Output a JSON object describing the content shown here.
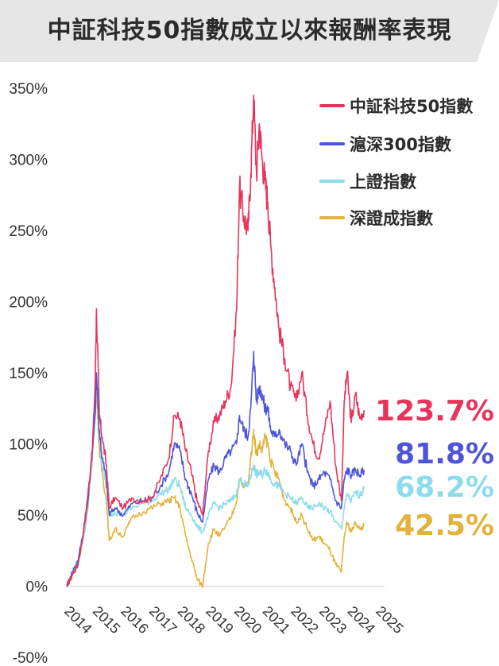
{
  "chart_data": {
    "type": "line",
    "title": "中証科技50指數成立以來報酬率表現",
    "xlabel": "",
    "ylabel": "",
    "ylim": [
      -50,
      350
    ],
    "y_ticks": [
      "350%",
      "300%",
      "250%",
      "200%",
      "150%",
      "100%",
      "50%",
      "0%",
      "-50%"
    ],
    "y_tick_values": [
      350,
      300,
      250,
      200,
      150,
      100,
      50,
      0,
      -50
    ],
    "x_ticks": [
      "2014",
      "2015",
      "2016",
      "2017",
      "2018",
      "2019",
      "2020",
      "2021",
      "2022",
      "2023",
      "2024",
      "2025"
    ],
    "x_tick_values": [
      2014.0,
      2015.0,
      2016.0,
      2017.0,
      2018.0,
      2019.0,
      2020.0,
      2021.0,
      2022.0,
      2023.0,
      2024.0,
      2025.0
    ],
    "grid": false,
    "legend_position": "top-right",
    "series": [
      {
        "name": "中証科技50指數",
        "color": "#e8345a",
        "final_label": "123.7%",
        "points": [
          [
            2014.0,
            0
          ],
          [
            2014.2,
            8
          ],
          [
            2014.4,
            15
          ],
          [
            2014.6,
            40
          ],
          [
            2014.75,
            65
          ],
          [
            2014.9,
            95
          ],
          [
            2015.0,
            140
          ],
          [
            2015.05,
            195
          ],
          [
            2015.15,
            120
          ],
          [
            2015.25,
            105
          ],
          [
            2015.4,
            85
          ],
          [
            2015.5,
            55
          ],
          [
            2015.7,
            62
          ],
          [
            2016.0,
            55
          ],
          [
            2016.3,
            62
          ],
          [
            2016.7,
            60
          ],
          [
            2017.0,
            62
          ],
          [
            2017.3,
            75
          ],
          [
            2017.6,
            90
          ],
          [
            2017.8,
            120
          ],
          [
            2018.0,
            118
          ],
          [
            2018.2,
            95
          ],
          [
            2018.4,
            80
          ],
          [
            2018.6,
            60
          ],
          [
            2018.8,
            50
          ],
          [
            2019.0,
            95
          ],
          [
            2019.2,
            115
          ],
          [
            2019.4,
            120
          ],
          [
            2019.6,
            130
          ],
          [
            2019.8,
            140
          ],
          [
            2020.0,
            195
          ],
          [
            2020.1,
            280
          ],
          [
            2020.25,
            260
          ],
          [
            2020.4,
            250
          ],
          [
            2020.5,
            290
          ],
          [
            2020.6,
            345
          ],
          [
            2020.7,
            290
          ],
          [
            2020.8,
            325
          ],
          [
            2020.9,
            300
          ],
          [
            2021.0,
            285
          ],
          [
            2021.1,
            270
          ],
          [
            2021.2,
            240
          ],
          [
            2021.35,
            210
          ],
          [
            2021.5,
            180
          ],
          [
            2021.7,
            160
          ],
          [
            2021.9,
            140
          ],
          [
            2022.1,
            130
          ],
          [
            2022.3,
            150
          ],
          [
            2022.5,
            120
          ],
          [
            2022.7,
            100
          ],
          [
            2022.9,
            90
          ],
          [
            2023.1,
            110
          ],
          [
            2023.3,
            130
          ],
          [
            2023.5,
            85
          ],
          [
            2023.7,
            60
          ],
          [
            2023.8,
            130
          ],
          [
            2023.9,
            150
          ],
          [
            2024.05,
            115
          ],
          [
            2024.2,
            135
          ],
          [
            2024.35,
            118
          ],
          [
            2024.5,
            123.7
          ]
        ]
      },
      {
        "name": "滬深300指數",
        "color": "#4e55d9",
        "final_label": "81.8%",
        "points": [
          [
            2014.0,
            0
          ],
          [
            2014.2,
            10
          ],
          [
            2014.4,
            18
          ],
          [
            2014.6,
            40
          ],
          [
            2014.75,
            60
          ],
          [
            2014.9,
            95
          ],
          [
            2015.0,
            120
          ],
          [
            2015.05,
            150
          ],
          [
            2015.15,
            110
          ],
          [
            2015.25,
            90
          ],
          [
            2015.4,
            75
          ],
          [
            2015.5,
            50
          ],
          [
            2015.7,
            55
          ],
          [
            2016.0,
            50
          ],
          [
            2016.3,
            58
          ],
          [
            2016.7,
            60
          ],
          [
            2017.0,
            62
          ],
          [
            2017.3,
            70
          ],
          [
            2017.6,
            80
          ],
          [
            2017.8,
            100
          ],
          [
            2018.0,
            95
          ],
          [
            2018.2,
            75
          ],
          [
            2018.4,
            65
          ],
          [
            2018.6,
            52
          ],
          [
            2018.8,
            45
          ],
          [
            2019.0,
            75
          ],
          [
            2019.2,
            85
          ],
          [
            2019.4,
            80
          ],
          [
            2019.6,
            90
          ],
          [
            2019.8,
            95
          ],
          [
            2020.0,
            100
          ],
          [
            2020.1,
            120
          ],
          [
            2020.25,
            110
          ],
          [
            2020.4,
            105
          ],
          [
            2020.5,
            125
          ],
          [
            2020.6,
            165
          ],
          [
            2020.7,
            130
          ],
          [
            2020.8,
            140
          ],
          [
            2020.9,
            135
          ],
          [
            2021.0,
            125
          ],
          [
            2021.1,
            125
          ],
          [
            2021.2,
            110
          ],
          [
            2021.35,
            105
          ],
          [
            2021.5,
            110
          ],
          [
            2021.7,
            100
          ],
          [
            2021.9,
            95
          ],
          [
            2022.1,
            85
          ],
          [
            2022.3,
            100
          ],
          [
            2022.5,
            80
          ],
          [
            2022.7,
            70
          ],
          [
            2022.9,
            75
          ],
          [
            2023.1,
            80
          ],
          [
            2023.3,
            75
          ],
          [
            2023.5,
            60
          ],
          [
            2023.7,
            55
          ],
          [
            2023.8,
            75
          ],
          [
            2023.9,
            82
          ],
          [
            2024.05,
            78
          ],
          [
            2024.2,
            82
          ],
          [
            2024.35,
            78
          ],
          [
            2024.5,
            81.8
          ]
        ]
      },
      {
        "name": "上證指數",
        "color": "#8ddcec",
        "final_label": "68.2%",
        "points": [
          [
            2014.0,
            0
          ],
          [
            2014.2,
            10
          ],
          [
            2014.4,
            18
          ],
          [
            2014.6,
            35
          ],
          [
            2014.75,
            58
          ],
          [
            2014.9,
            90
          ],
          [
            2015.0,
            115
          ],
          [
            2015.05,
            140
          ],
          [
            2015.15,
            105
          ],
          [
            2015.25,
            85
          ],
          [
            2015.4,
            70
          ],
          [
            2015.5,
            50
          ],
          [
            2015.7,
            52
          ],
          [
            2016.0,
            50
          ],
          [
            2016.3,
            55
          ],
          [
            2016.7,
            58
          ],
          [
            2017.0,
            60
          ],
          [
            2017.3,
            65
          ],
          [
            2017.6,
            68
          ],
          [
            2017.8,
            75
          ],
          [
            2018.0,
            70
          ],
          [
            2018.2,
            55
          ],
          [
            2018.4,
            50
          ],
          [
            2018.6,
            42
          ],
          [
            2018.8,
            38
          ],
          [
            2019.0,
            50
          ],
          [
            2019.2,
            58
          ],
          [
            2019.4,
            55
          ],
          [
            2019.6,
            58
          ],
          [
            2019.8,
            60
          ],
          [
            2020.0,
            65
          ],
          [
            2020.1,
            75
          ],
          [
            2020.25,
            72
          ],
          [
            2020.4,
            70
          ],
          [
            2020.5,
            78
          ],
          [
            2020.6,
            85
          ],
          [
            2020.7,
            78
          ],
          [
            2020.8,
            80
          ],
          [
            2020.9,
            78
          ],
          [
            2021.0,
            82
          ],
          [
            2021.1,
            80
          ],
          [
            2021.2,
            75
          ],
          [
            2021.35,
            72
          ],
          [
            2021.5,
            70
          ],
          [
            2021.7,
            65
          ],
          [
            2021.9,
            62
          ],
          [
            2022.1,
            58
          ],
          [
            2022.3,
            62
          ],
          [
            2022.5,
            55
          ],
          [
            2022.7,
            55
          ],
          [
            2022.9,
            58
          ],
          [
            2023.1,
            55
          ],
          [
            2023.3,
            52
          ],
          [
            2023.5,
            45
          ],
          [
            2023.7,
            40
          ],
          [
            2023.8,
            55
          ],
          [
            2023.9,
            65
          ],
          [
            2024.05,
            60
          ],
          [
            2024.2,
            66
          ],
          [
            2024.35,
            64
          ],
          [
            2024.5,
            68.2
          ]
        ]
      },
      {
        "name": "深證成指數",
        "color": "#e2b23c",
        "final_label": "42.5%",
        "points": [
          [
            2014.0,
            0
          ],
          [
            2014.2,
            8
          ],
          [
            2014.4,
            15
          ],
          [
            2014.6,
            35
          ],
          [
            2014.75,
            55
          ],
          [
            2014.9,
            90
          ],
          [
            2015.0,
            120
          ],
          [
            2015.05,
            140
          ],
          [
            2015.15,
            95
          ],
          [
            2015.25,
            80
          ],
          [
            2015.4,
            60
          ],
          [
            2015.5,
            32
          ],
          [
            2015.7,
            40
          ],
          [
            2016.0,
            35
          ],
          [
            2016.3,
            48
          ],
          [
            2016.7,
            52
          ],
          [
            2017.0,
            55
          ],
          [
            2017.3,
            58
          ],
          [
            2017.6,
            60
          ],
          [
            2017.8,
            62
          ],
          [
            2018.0,
            55
          ],
          [
            2018.2,
            35
          ],
          [
            2018.4,
            20
          ],
          [
            2018.6,
            5
          ],
          [
            2018.8,
            0
          ],
          [
            2019.0,
            30
          ],
          [
            2019.2,
            40
          ],
          [
            2019.4,
            35
          ],
          [
            2019.6,
            42
          ],
          [
            2019.8,
            48
          ],
          [
            2020.0,
            60
          ],
          [
            2020.1,
            75
          ],
          [
            2020.25,
            70
          ],
          [
            2020.4,
            72
          ],
          [
            2020.5,
            90
          ],
          [
            2020.6,
            110
          ],
          [
            2020.7,
            92
          ],
          [
            2020.8,
            100
          ],
          [
            2020.9,
            95
          ],
          [
            2021.0,
            105
          ],
          [
            2021.1,
            100
          ],
          [
            2021.2,
            88
          ],
          [
            2021.35,
            80
          ],
          [
            2021.5,
            75
          ],
          [
            2021.7,
            60
          ],
          [
            2021.9,
            55
          ],
          [
            2022.1,
            45
          ],
          [
            2022.3,
            50
          ],
          [
            2022.5,
            40
          ],
          [
            2022.7,
            32
          ],
          [
            2022.9,
            35
          ],
          [
            2023.1,
            30
          ],
          [
            2023.3,
            25
          ],
          [
            2023.5,
            15
          ],
          [
            2023.7,
            10
          ],
          [
            2023.8,
            35
          ],
          [
            2023.9,
            45
          ],
          [
            2024.05,
            38
          ],
          [
            2024.2,
            45
          ],
          [
            2024.35,
            40
          ],
          [
            2024.5,
            42.5
          ]
        ]
      }
    ]
  }
}
